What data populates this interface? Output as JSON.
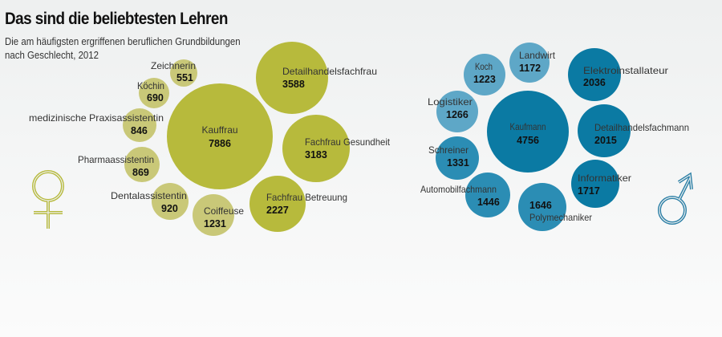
{
  "title": "Das sind die beliebtesten Lehren",
  "subtitle_line1": "Die am häufigsten ergriffenen beruflichen Grundbildungen",
  "subtitle_line2": "nach Geschlecht, 2012",
  "colors": {
    "female_dark": "#b7ba3c",
    "female_light": "#c9c878",
    "male_dark": "#0b7aa3",
    "male_mid": "#2b8db4",
    "male_light": "#5ea7c7"
  },
  "chart_data": [
    {
      "type": "bubble",
      "name": "Frauen",
      "symbol": "female-symbol",
      "categories": [
        "Zeichnerin",
        "Köchin",
        "medizinische Praxisassistentin",
        "Pharmaassistentin",
        "Dentalassistentin",
        "Coiffeuse",
        "Kauffrau",
        "Detailhandelsfachfrau",
        "Fachfrau Gesundheit",
        "Fachfrau Betreuung"
      ],
      "values": [
        551,
        690,
        846,
        869,
        920,
        1231,
        7886,
        3588,
        3183,
        2227
      ]
    },
    {
      "type": "bubble",
      "name": "Männer",
      "symbol": "male-symbol",
      "categories": [
        "Landwirt",
        "Koch",
        "Logistiker",
        "Schreiner",
        "Automobilfachmann",
        "Polymechaniker",
        "Kaufmann",
        "Elektroinstallateur",
        "Detailhandelsfachmann",
        "Informatiker"
      ],
      "values": [
        1172,
        1223,
        1266,
        1331,
        1446,
        1646,
        4756,
        2036,
        2015,
        1717
      ]
    }
  ]
}
